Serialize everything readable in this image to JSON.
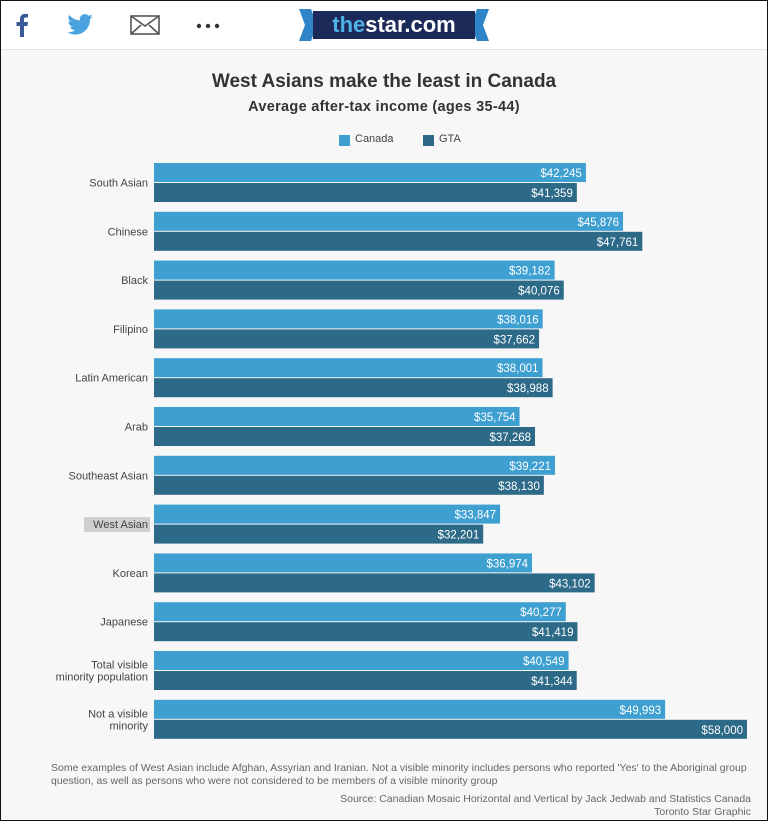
{
  "share_bar": {
    "icons": [
      "facebook-icon",
      "twitter-icon",
      "email-icon",
      "more-icon"
    ],
    "brand": {
      "prefix": "the",
      "suffix": "star.com"
    },
    "brand_colors": {
      "navy": "#1c2a59",
      "blue": "#2e84c6"
    }
  },
  "colors": {
    "canada": "#3e9fd1",
    "gta": "#2d6a88",
    "label_text": "#444444",
    "value_text": "#ffffff"
  },
  "chart_data": {
    "type": "bar",
    "orientation": "horizontal",
    "title": "West Asians make the least in Canada",
    "subtitle": "Average after-tax income (ages 35-44)",
    "legend_position": "top-center",
    "grid": false,
    "xlim": [
      0,
      58000
    ],
    "categories": [
      [
        "South Asian"
      ],
      [
        "Chinese"
      ],
      [
        "Black"
      ],
      [
        "Filipino"
      ],
      [
        "Latin American"
      ],
      [
        "Arab"
      ],
      [
        "Southeast Asian"
      ],
      [
        "West Asian"
      ],
      [
        "Korean"
      ],
      [
        "Japanese"
      ],
      [
        "Total visible",
        "minority population"
      ],
      [
        "Not a visible",
        "minority"
      ]
    ],
    "highlighted_category": "West Asian",
    "series": [
      {
        "name": "Canada",
        "values": [
          42245,
          45876,
          39182,
          38016,
          38001,
          35754,
          39221,
          33847,
          36974,
          40277,
          40549,
          49993
        ],
        "labels": [
          "$42,245",
          "$45,876",
          "$39,182",
          "$38,016",
          "$38,001",
          "$35,754",
          "$39,221",
          "$33,847",
          "$36,974",
          "$40,277",
          "$40,549",
          "$49,993"
        ]
      },
      {
        "name": "GTA",
        "values": [
          41359,
          47761,
          40076,
          37662,
          38988,
          37268,
          38130,
          32201,
          43102,
          41419,
          41344,
          58000
        ],
        "labels": [
          "$41,359",
          "$47,761",
          "$40,076",
          "$37,662",
          "$38,988",
          "$37,268",
          "$38,130",
          "$32,201",
          "$43,102",
          "$41,419",
          "$41,344",
          "$58,000"
        ]
      }
    ]
  },
  "footnote": {
    "note": "Some examples of West Asian include Afghan, Assyrian and Iranian. Not a visible minority includes persons who reported 'Yes' to the Aboriginal group question, as well as persons who were not considered to be members of a visible minority group",
    "source": "Source: Canadian Mosaic Horizontal and Vertical by Jack Jedwab and Statistics Canada",
    "credit": "Toronto Star Graphic"
  }
}
